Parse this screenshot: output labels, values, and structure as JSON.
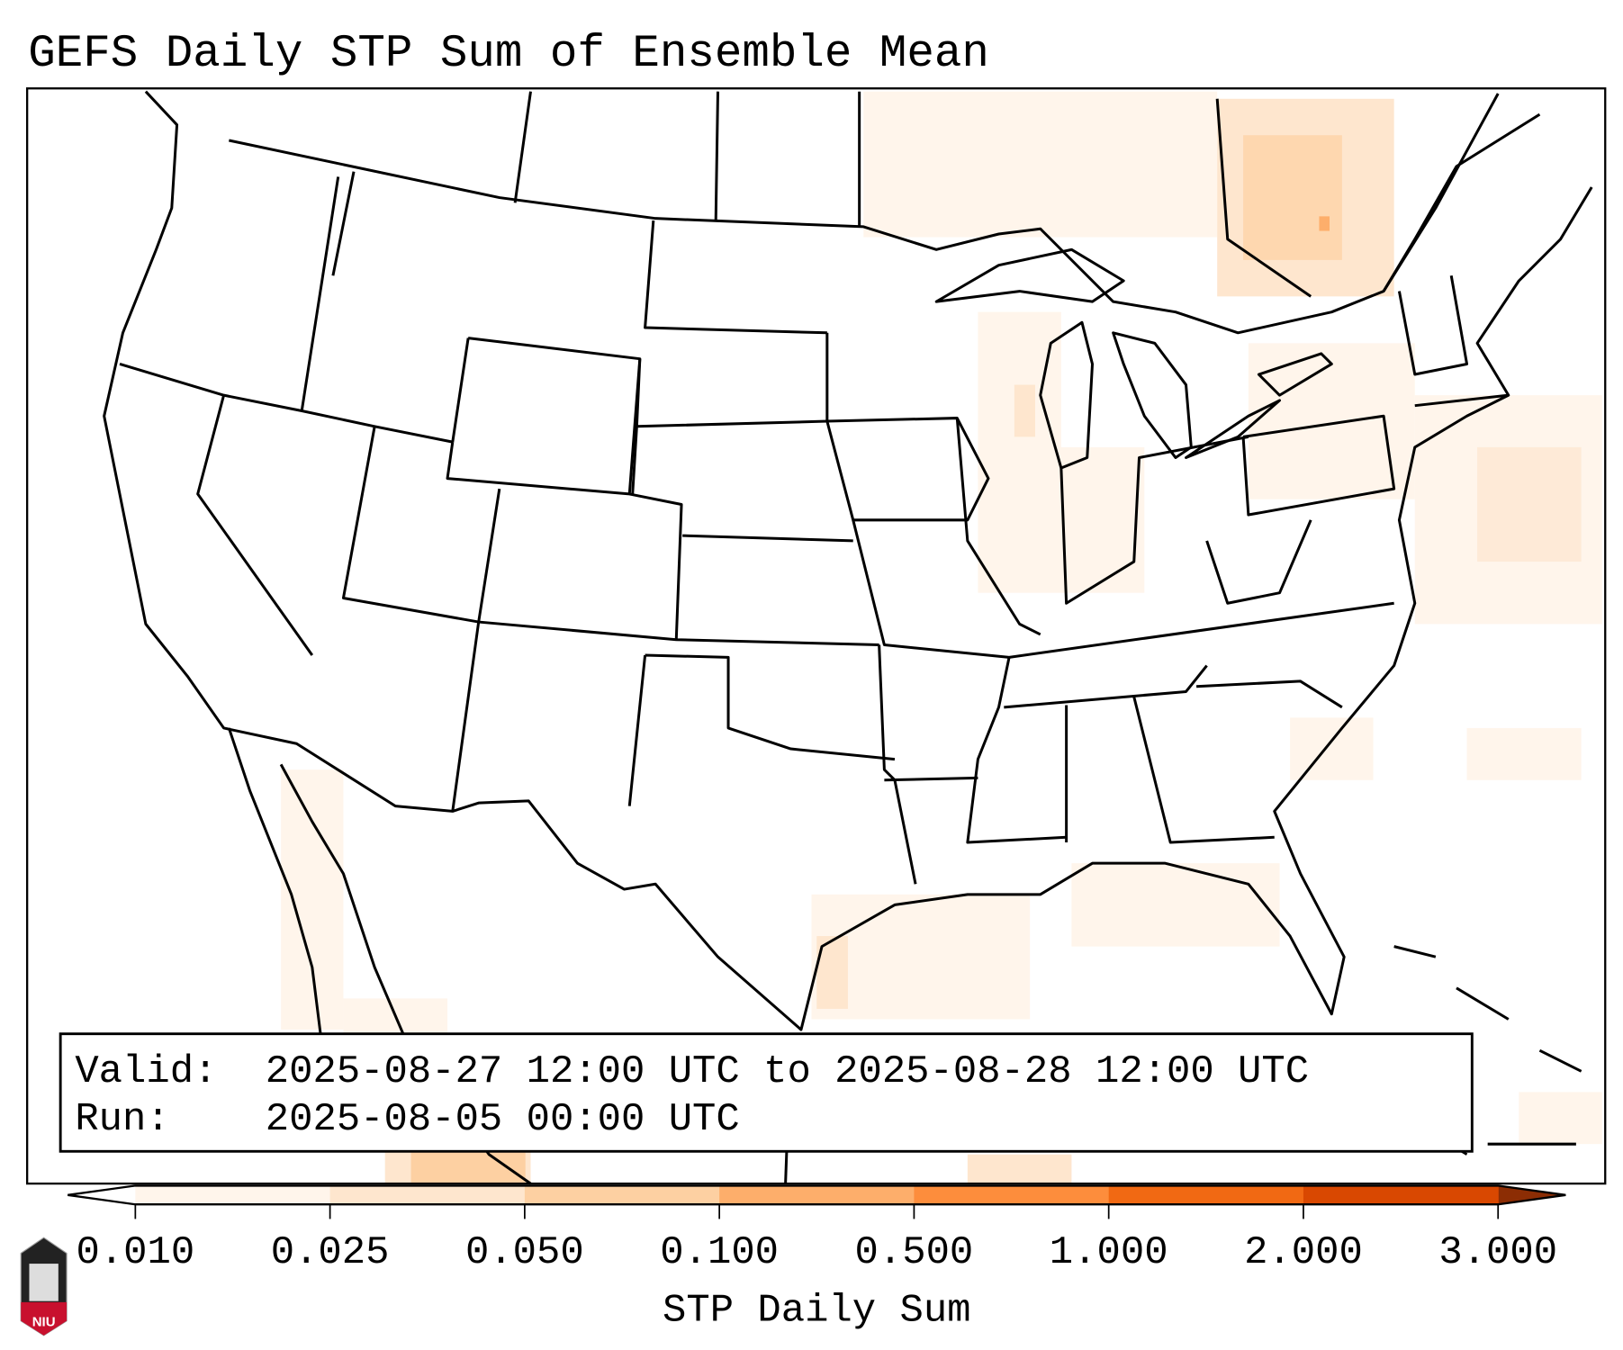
{
  "title": "GEFS Daily STP Sum of Ensemble Mean",
  "info_box": {
    "valid_label": "Valid:",
    "valid_value": "2025-08-27 12:00 UTC to 2025-08-28 12:00 UTC",
    "run_label": "Run:",
    "run_value": "2025-08-05 00:00 UTC"
  },
  "colorbar": {
    "label": "STP Daily Sum",
    "ticks": [
      "0.010",
      "0.025",
      "0.050",
      "0.100",
      "0.500",
      "1.000",
      "2.000",
      "3.000"
    ],
    "colors": [
      "#fff5eb",
      "#fee6ce",
      "#fdd0a2",
      "#fdae6b",
      "#fd8d3c",
      "#f16913",
      "#d94801"
    ],
    "under_color": "#ffffff",
    "over_color": "#8c2d04"
  },
  "logo": {
    "text": "NIU"
  }
}
